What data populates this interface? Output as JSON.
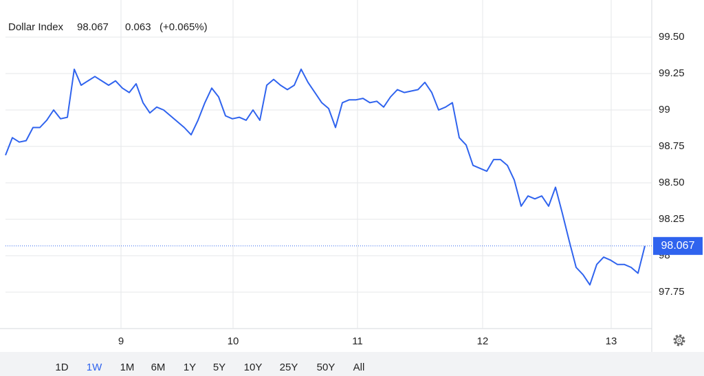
{
  "chart_data": {
    "type": "line",
    "title": "Dollar Index",
    "last_value": 98.067,
    "change": 0.063,
    "change_label": "(+0.065%)",
    "color": "#2f63ee",
    "change_color": "#3cb44b",
    "grid": true,
    "x": [
      0,
      1,
      2,
      3,
      4,
      5,
      6,
      7,
      8,
      9,
      10,
      11,
      12,
      13,
      14,
      15,
      16,
      17,
      18,
      19,
      20,
      21,
      22,
      23,
      24,
      25,
      26,
      27,
      28,
      29,
      30,
      31,
      32,
      33,
      34,
      35,
      36,
      37,
      38,
      39,
      40,
      41,
      42,
      43,
      44,
      45,
      46,
      47,
      48,
      49,
      50,
      51,
      52,
      53,
      54,
      55,
      56,
      57,
      58,
      59,
      60,
      61,
      62,
      63,
      64,
      65,
      66,
      67,
      68,
      69,
      70,
      71,
      72,
      73,
      74,
      75,
      76,
      77,
      78,
      79,
      80,
      81,
      82,
      83,
      84,
      85,
      86,
      87,
      88,
      89,
      90,
      91,
      92,
      93
    ],
    "values": [
      98.69,
      98.81,
      98.78,
      98.79,
      98.88,
      98.88,
      98.93,
      99.0,
      98.94,
      98.95,
      99.28,
      99.17,
      99.2,
      99.23,
      99.2,
      99.17,
      99.2,
      99.15,
      99.12,
      99.18,
      99.05,
      98.98,
      99.02,
      99.0,
      98.96,
      98.92,
      98.88,
      98.83,
      98.93,
      99.05,
      99.15,
      99.09,
      98.96,
      98.94,
      98.95,
      98.93,
      99.0,
      98.93,
      99.17,
      99.21,
      99.17,
      99.14,
      99.17,
      99.28,
      99.19,
      99.12,
      99.05,
      99.01,
      98.88,
      99.05,
      99.07,
      99.07,
      99.08,
      99.05,
      99.06,
      99.02,
      99.09,
      99.14,
      99.12,
      99.13,
      99.14,
      99.19,
      99.12,
      99.0,
      99.02,
      99.05,
      98.81,
      98.76,
      98.62,
      98.6,
      98.58,
      98.66,
      98.66,
      98.62,
      98.52,
      98.34,
      98.41,
      98.39,
      98.41,
      98.34,
      98.47,
      98.29,
      98.1,
      97.92,
      97.87,
      97.8,
      97.94,
      97.99,
      97.97,
      97.94,
      97.94,
      97.92,
      97.88,
      98.067
    ],
    "xlim": [
      0,
      94
    ],
    "xticks": [
      {
        "value": 16.8,
        "label": "9"
      },
      {
        "value": 33.1,
        "label": "10"
      },
      {
        "value": 51.2,
        "label": "11"
      },
      {
        "value": 69.4,
        "label": "12"
      },
      {
        "value": 88.1,
        "label": "13"
      }
    ],
    "ylim": [
      97.5,
      99.755
    ],
    "yticks": [
      {
        "value": 97.75,
        "label": "97.75"
      },
      98,
      98.25,
      {
        "value": 98.5,
        "label": "98.50"
      },
      98.75,
      99,
      99.25,
      {
        "value": 99.5,
        "label": "99.50"
      }
    ]
  },
  "ui": {
    "ranges": [
      "1D",
      "1W",
      "1M",
      "6M",
      "1Y",
      "5Y",
      "10Y",
      "25Y",
      "50Y",
      "All"
    ],
    "selected_index": 1
  }
}
